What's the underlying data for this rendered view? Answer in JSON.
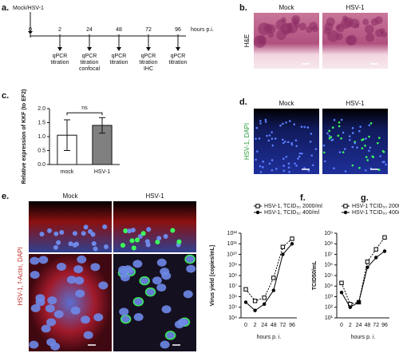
{
  "panel_labels": [
    "a.",
    "b.",
    "c.",
    "d.",
    "e.",
    "f.",
    "g."
  ],
  "timeline": {
    "start_label": "Mock/HSV-1",
    "ticks": [
      0,
      2,
      24,
      48,
      72,
      96
    ],
    "unit": "hours p.i.",
    "events": [
      [
        "qPCR",
        "titration"
      ],
      [
        "qPCR",
        "titration",
        "confocal"
      ],
      [
        "qPCR",
        "titration"
      ],
      [
        "qPCR",
        "titration",
        "IHC"
      ],
      [
        "qPCR",
        "titration"
      ]
    ]
  },
  "he_panel": {
    "titles": [
      "Mock",
      "HSV-1"
    ],
    "stain": "H&E"
  },
  "if_panel": {
    "titles": [
      "Mock",
      "HSV-1"
    ],
    "stain": "HSV-1, DAPI"
  },
  "confocal_panel": {
    "titles": [
      "Mock",
      "HSV-1"
    ],
    "stain": "HSV-1, f-Actin, DAPI"
  },
  "chart_data": [
    {
      "type": "bar",
      "ylabel": "Relative expression of KKF (to EF2)",
      "categories": [
        "mock",
        "HSV-1"
      ],
      "values": [
        1.05,
        1.4
      ],
      "errors": [
        0.55,
        0.28
      ],
      "colors": [
        "#ffffff",
        "#808080"
      ],
      "ylim": [
        0,
        2.0
      ],
      "yticks": [
        {
          "value": 0,
          "label": "0.0"
        },
        {
          "value": 0.5,
          "label": "0.5"
        },
        {
          "value": 1.0,
          "label": "1.0"
        },
        {
          "value": 1.5,
          "label": "1.5"
        },
        {
          "value": 2.0,
          "label": "2.0"
        }
      ],
      "annotation": "ns"
    },
    {
      "type": "line",
      "log_y": true,
      "ylabel": "Virus yield [copies/mL]",
      "xlabel": "hours p. i.",
      "categories": [
        "0",
        "2",
        "24",
        "48",
        "72",
        "96"
      ],
      "series": [
        {
          "name": "HSV-1, TCID₅₀ 2000/ml",
          "color": "#000000",
          "marker": "square-open",
          "values": [
            5000000,
            400000,
            800000,
            60000000,
            50000000000,
            300000000000
          ]
        },
        {
          "name": "HSV-1, TCID₅₀ 400/ml",
          "color": "#000000",
          "marker": "circle",
          "values": [
            300000,
            50000,
            200000,
            4000000,
            10000000000,
            100000000000
          ]
        }
      ],
      "ylim": [
        10000,
        1000000000000
      ],
      "yticks": [
        {
          "value": 10000,
          "label": "10⁴"
        },
        {
          "value": 100000,
          "label": "10⁵"
        },
        {
          "value": 1000000,
          "label": "10⁶"
        },
        {
          "value": 10000000,
          "label": "10⁷"
        },
        {
          "value": 100000000,
          "label": "10⁸"
        },
        {
          "value": 1000000000,
          "label": "10⁹"
        },
        {
          "value": 10000000000,
          "label": "10¹⁰"
        },
        {
          "value": 100000000000,
          "label": "10¹¹"
        },
        {
          "value": 1000000000000,
          "label": "10¹²"
        }
      ],
      "legend": "top"
    },
    {
      "type": "line",
      "log_y": true,
      "ylabel": "TCID50/mL",
      "xlabel": "hours p. i.",
      "categories": [
        "0",
        "2",
        "24",
        "48",
        "72",
        "96"
      ],
      "series": [
        {
          "name": "HSV-1 TCID₅₀ 2000/ml",
          "color": "#000000",
          "marker": "square-open",
          "values": [
            20000,
            200,
            300,
            2000000,
            30000000,
            400000000
          ]
        },
        {
          "name": "HSV-1 TCID₅₀ 400/ml",
          "color": "#000000",
          "marker": "circle",
          "values": [
            2500,
            100,
            300,
            600000,
            5000000,
            20000000
          ]
        }
      ],
      "ylim": [
        10,
        1000000000
      ],
      "yticks": [
        {
          "value": 10,
          "label": "10¹"
        },
        {
          "value": 100,
          "label": "10²"
        },
        {
          "value": 1000,
          "label": "10³"
        },
        {
          "value": 10000,
          "label": "10⁴"
        },
        {
          "value": 100000,
          "label": "10⁵"
        },
        {
          "value": 1000000,
          "label": "10⁶"
        },
        {
          "value": 10000000,
          "label": "10⁷"
        },
        {
          "value": 100000000,
          "label": "10⁸"
        },
        {
          "value": 1000000000,
          "label": "10⁹"
        }
      ],
      "legend": "top"
    }
  ]
}
